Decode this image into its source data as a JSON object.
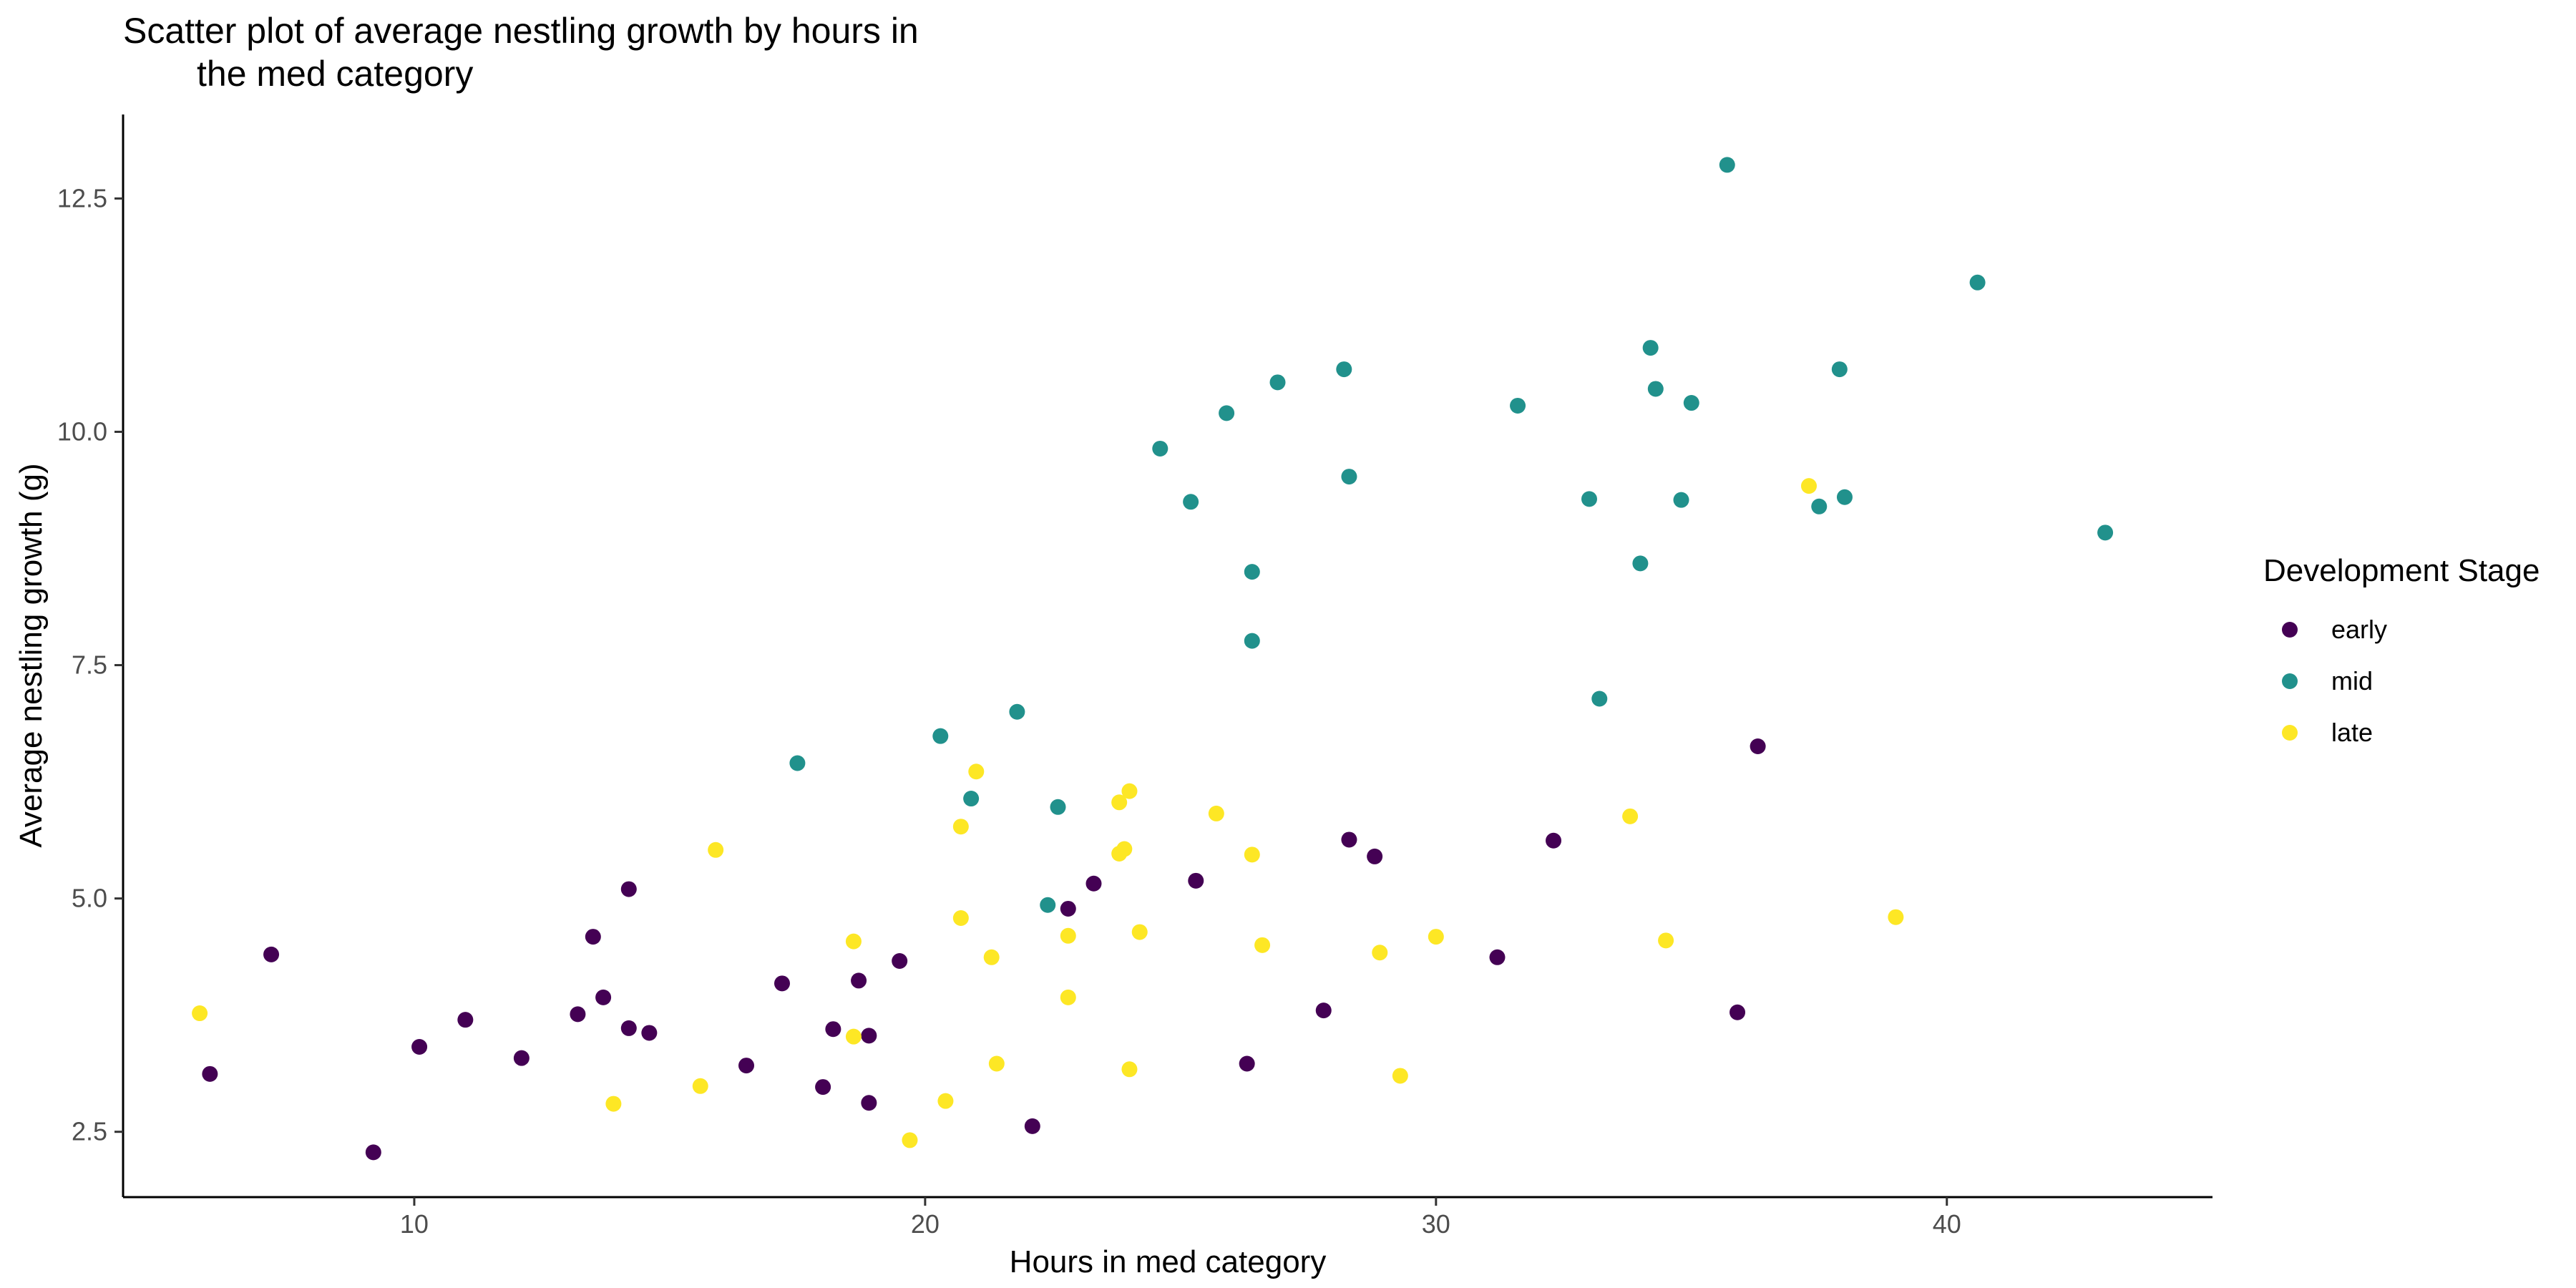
{
  "chart_data": {
    "type": "scatter",
    "title_lines": [
      "Scatter plot of average nestling growth by hours in",
      "the med category"
    ],
    "xlabel": "Hours in med category",
    "ylabel": "Average nestling growth (g)",
    "xlim": [
      4.3,
      45.2
    ],
    "ylim": [
      1.8,
      13.4
    ],
    "x_ticks": [
      10,
      20,
      30,
      40
    ],
    "x_tick_labels": [
      "10",
      "20",
      "30",
      "40"
    ],
    "y_ticks": [
      2.5,
      5.0,
      7.5,
      10.0,
      12.5
    ],
    "y_tick_labels": [
      "2.5",
      "5.0",
      "7.5",
      "10.0",
      "12.5"
    ],
    "grid": false,
    "legend": {
      "title": "Development Stage",
      "position": "right"
    },
    "series": [
      {
        "name": "early",
        "color": "#440154",
        "points": [
          [
            6.0,
            3.12
          ],
          [
            7.2,
            4.4
          ],
          [
            9.2,
            2.28
          ],
          [
            10.1,
            3.41
          ],
          [
            11.0,
            3.7
          ],
          [
            12.1,
            3.29
          ],
          [
            13.2,
            3.76
          ],
          [
            13.5,
            4.59
          ],
          [
            13.7,
            3.94
          ],
          [
            14.2,
            3.61
          ],
          [
            14.2,
            5.1
          ],
          [
            14.6,
            3.56
          ],
          [
            16.5,
            3.21
          ],
          [
            17.2,
            4.09
          ],
          [
            18.0,
            2.98
          ],
          [
            18.2,
            3.6
          ],
          [
            18.7,
            4.12
          ],
          [
            18.9,
            3.53
          ],
          [
            18.9,
            2.81
          ],
          [
            19.5,
            4.33
          ],
          [
            22.1,
            2.56
          ],
          [
            22.8,
            4.89
          ],
          [
            23.3,
            5.16
          ],
          [
            25.3,
            5.19
          ],
          [
            26.3,
            3.23
          ],
          [
            27.8,
            3.8
          ],
          [
            28.3,
            5.63
          ],
          [
            28.8,
            5.45
          ],
          [
            31.2,
            4.37
          ],
          [
            32.3,
            5.62
          ],
          [
            35.9,
            3.78
          ],
          [
            36.3,
            6.63
          ]
        ]
      },
      {
        "name": "mid",
        "color": "#21918c",
        "points": [
          [
            17.5,
            6.45
          ],
          [
            20.3,
            6.74
          ],
          [
            20.9,
            6.07
          ],
          [
            21.8,
            7.0
          ],
          [
            22.4,
            4.93
          ],
          [
            22.6,
            5.98
          ],
          [
            24.6,
            9.82
          ],
          [
            25.2,
            9.25
          ],
          [
            25.9,
            10.2
          ],
          [
            26.4,
            8.5
          ],
          [
            26.4,
            7.76
          ],
          [
            26.9,
            10.53
          ],
          [
            28.2,
            10.67
          ],
          [
            28.3,
            9.52
          ],
          [
            31.6,
            10.28
          ],
          [
            33.0,
            9.28
          ],
          [
            33.2,
            7.14
          ],
          [
            34.0,
            8.59
          ],
          [
            34.2,
            10.9
          ],
          [
            34.3,
            10.46
          ],
          [
            34.8,
            9.27
          ],
          [
            35.0,
            10.31
          ],
          [
            35.7,
            12.86
          ],
          [
            37.5,
            9.2
          ],
          [
            37.9,
            10.67
          ],
          [
            38.0,
            9.3
          ],
          [
            40.6,
            11.6
          ],
          [
            43.1,
            8.92
          ]
        ]
      },
      {
        "name": "late",
        "color": "#fde725",
        "points": [
          [
            5.8,
            3.77
          ],
          [
            13.9,
            2.8
          ],
          [
            15.6,
            2.99
          ],
          [
            15.9,
            5.52
          ],
          [
            18.6,
            4.54
          ],
          [
            18.6,
            3.52
          ],
          [
            19.7,
            2.41
          ],
          [
            20.4,
            2.83
          ],
          [
            20.7,
            4.79
          ],
          [
            20.7,
            5.77
          ],
          [
            21.0,
            6.36
          ],
          [
            21.3,
            4.37
          ],
          [
            21.4,
            3.23
          ],
          [
            22.8,
            3.94
          ],
          [
            22.8,
            4.6
          ],
          [
            23.8,
            6.03
          ],
          [
            23.8,
            5.48
          ],
          [
            23.9,
            5.53
          ],
          [
            24.0,
            6.15
          ],
          [
            24.0,
            3.17
          ],
          [
            24.2,
            4.64
          ],
          [
            25.7,
            5.91
          ],
          [
            26.4,
            5.47
          ],
          [
            26.6,
            4.5
          ],
          [
            28.9,
            4.42
          ],
          [
            29.3,
            3.1
          ],
          [
            30.0,
            4.59
          ],
          [
            33.8,
            5.88
          ],
          [
            34.5,
            4.55
          ],
          [
            37.3,
            9.42
          ],
          [
            39.0,
            4.8
          ]
        ]
      }
    ]
  }
}
